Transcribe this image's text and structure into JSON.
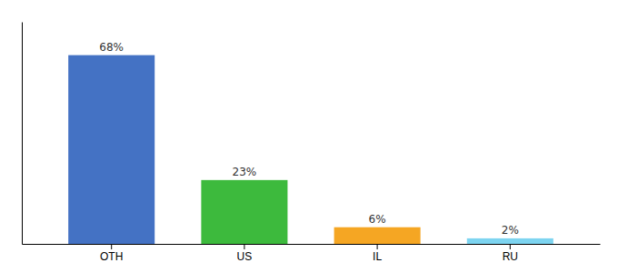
{
  "chart_data": {
    "type": "bar",
    "categories": [
      "OTH",
      "US",
      "IL",
      "RU"
    ],
    "values": [
      68,
      23,
      6,
      2
    ],
    "value_labels": [
      "68%",
      "23%",
      "6%",
      "2%"
    ],
    "colors": [
      "#4472c4",
      "#3dba3d",
      "#f5a623",
      "#7dd4f0"
    ],
    "ylim": [
      0,
      80
    ],
    "data_labels": true,
    "tick_labels": "x",
    "grid": false
  }
}
